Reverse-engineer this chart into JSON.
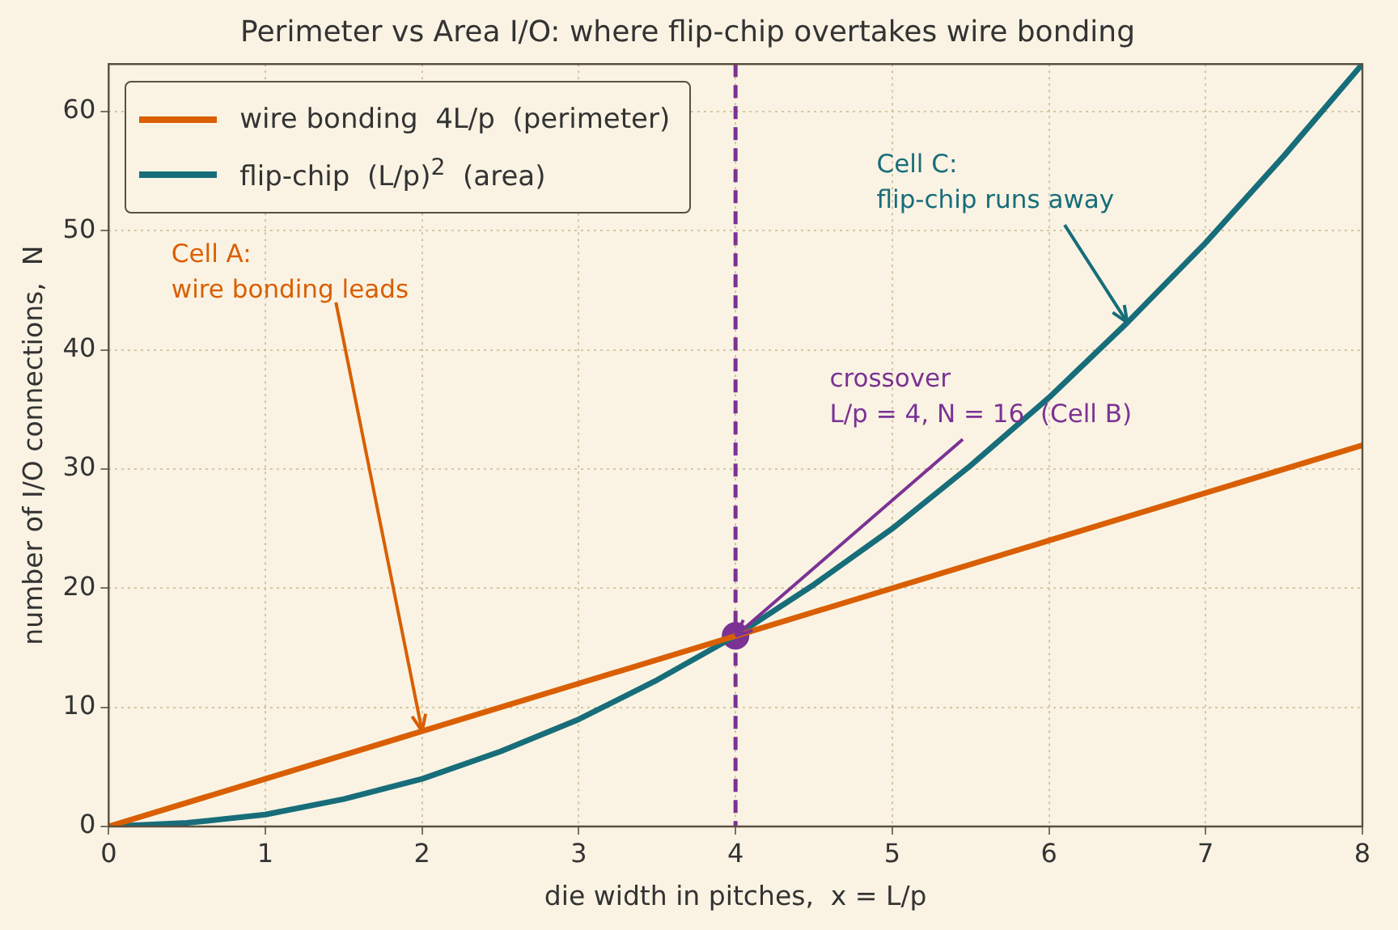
{
  "chart_data": {
    "type": "line",
    "title": "Perimeter vs Area I/O: where flip-chip overtakes wire bonding",
    "xlabel": "die width in pitches,  x = L/p",
    "ylabel": "number of I/O connections,  N",
    "xlim": [
      0,
      8
    ],
    "xticks": [
      0,
      1,
      2,
      3,
      4,
      5,
      6,
      7,
      8
    ],
    "ylim": [
      0,
      64
    ],
    "yticks": [
      0,
      10,
      20,
      30,
      40,
      50,
      60
    ],
    "grid": true,
    "legend": "top left",
    "marker": "none",
    "line_style": "solid",
    "series": [
      {
        "name": "wire bonding  4L/p  (perimeter)",
        "color": "#d95f02",
        "x": [
          0,
          2,
          4,
          6,
          8
        ],
        "values": [
          0,
          8,
          16,
          24,
          32
        ]
      },
      {
        "name": "flip-chip  (L/p)$^{2}$  (area)",
        "color": "#176d7a",
        "x": [
          0,
          0.5,
          1,
          1.5,
          2,
          2.5,
          3,
          3.5,
          4,
          4.5,
          5,
          5.5,
          6,
          6.5,
          7,
          7.5,
          8
        ],
        "values": [
          0,
          0.3,
          1,
          2.3,
          4,
          6.3,
          9,
          12.3,
          16,
          20.3,
          25,
          30.3,
          36,
          42.3,
          49,
          56.3,
          64
        ]
      },
      {
        "type": "scatter",
        "marker": "circle",
        "color": "#7b3294",
        "x": [
          4
        ],
        "values": [
          16
        ]
      }
    ],
    "ref_lines": [
      {
        "axis": "x",
        "value": 4,
        "color": "#7b3294",
        "line_style": "dashed"
      }
    ],
    "annotations": [
      {
        "text": "Cell A:\nwire bonding leads",
        "x": 2,
        "y": 8
      },
      {
        "text": "crossover\nL/p = 4, N = 16  (Cell B)",
        "x": 4,
        "y": 16
      },
      {
        "text": "Cell C:\nflip-chip runs away",
        "x": 6.5,
        "y": 42.3
      }
    ]
  }
}
